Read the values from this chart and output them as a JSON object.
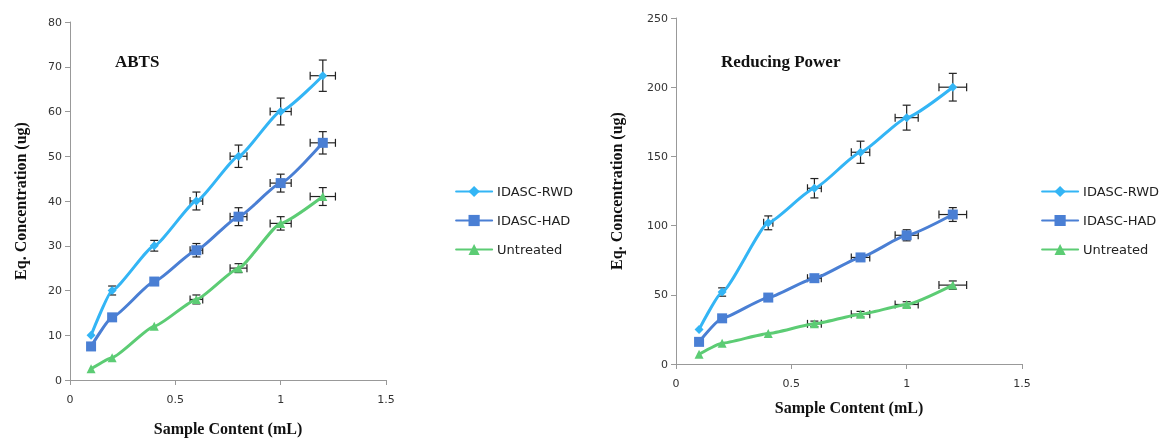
{
  "chart_data": [
    {
      "type": "line",
      "title": "ABTS",
      "xlabel": "Sample Content (mL)",
      "ylabel": "Eq. Concentration (ug)",
      "x": [
        0.1,
        0.2,
        0.4,
        0.6,
        0.8,
        1.0,
        1.2
      ],
      "xlim": [
        0,
        1.5
      ],
      "xticks": [
        0,
        0.5,
        1,
        1.5
      ],
      "ylim": [
        0,
        80
      ],
      "yticks": [
        0,
        10,
        20,
        30,
        40,
        50,
        60,
        70,
        80
      ],
      "grid": false,
      "legend": "right",
      "line_style": "solid",
      "series": [
        {
          "name": "IDASC-RWD",
          "color": "#33b5f5",
          "marker": "diamond",
          "values": [
            10,
            20,
            30,
            40,
            50,
            60,
            68
          ],
          "errors": [
            null,
            1,
            1.2,
            2,
            2.5,
            3,
            3.5
          ],
          "xerrors": [
            null,
            null,
            null,
            0.03,
            0.04,
            0.05,
            0.06
          ]
        },
        {
          "name": "IDASC-HAD",
          "color": "#4a7fd4",
          "marker": "square",
          "values": [
            7.5,
            14,
            22,
            29,
            36.5,
            44,
            53
          ],
          "errors": [
            null,
            null,
            null,
            1.5,
            2,
            2,
            2.5
          ],
          "xerrors": [
            null,
            null,
            null,
            0.03,
            0.04,
            0.05,
            0.06
          ]
        },
        {
          "name": "Untreated",
          "color": "#5ccc74",
          "marker": "triangle",
          "values": [
            2.5,
            5,
            12,
            18,
            25,
            35,
            41
          ],
          "errors": [
            null,
            null,
            null,
            1,
            1,
            1.5,
            2
          ],
          "xerrors": [
            null,
            null,
            null,
            0.03,
            0.04,
            0.05,
            0.06
          ]
        }
      ]
    },
    {
      "type": "line",
      "title": "Reducing Power",
      "xlabel": "Sample Content (mL)",
      "ylabel": "Eq. Concentration (ug)",
      "x": [
        0.1,
        0.2,
        0.4,
        0.6,
        0.8,
        1.0,
        1.2
      ],
      "xlim": [
        0,
        1.5
      ],
      "xticks": [
        0,
        0.5,
        1,
        1.5
      ],
      "ylim": [
        0,
        250
      ],
      "yticks": [
        0,
        50,
        100,
        150,
        200,
        250
      ],
      "grid": false,
      "legend": "right",
      "line_style": "solid",
      "series": [
        {
          "name": "IDASC-RWD",
          "color": "#33b5f5",
          "marker": "diamond",
          "values": [
            25,
            52,
            102,
            127,
            153,
            178,
            200
          ],
          "errors": [
            null,
            3,
            5,
            7,
            8,
            9,
            10
          ],
          "xerrors": [
            null,
            null,
            0.02,
            0.03,
            0.04,
            0.05,
            0.06
          ]
        },
        {
          "name": "IDASC-HAD",
          "color": "#4a7fd4",
          "marker": "square",
          "values": [
            16,
            33,
            48,
            62,
            77,
            93,
            108
          ],
          "errors": [
            null,
            null,
            null,
            null,
            null,
            4,
            5
          ],
          "xerrors": [
            null,
            null,
            null,
            0.03,
            0.04,
            0.05,
            0.06
          ]
        },
        {
          "name": "Untreated",
          "color": "#5ccc74",
          "marker": "triangle",
          "values": [
            7,
            15,
            22,
            29,
            36,
            43,
            57
          ],
          "errors": [
            null,
            null,
            null,
            2,
            2,
            2,
            3
          ],
          "xerrors": [
            null,
            null,
            null,
            0.03,
            0.04,
            0.05,
            0.06
          ]
        }
      ]
    }
  ]
}
